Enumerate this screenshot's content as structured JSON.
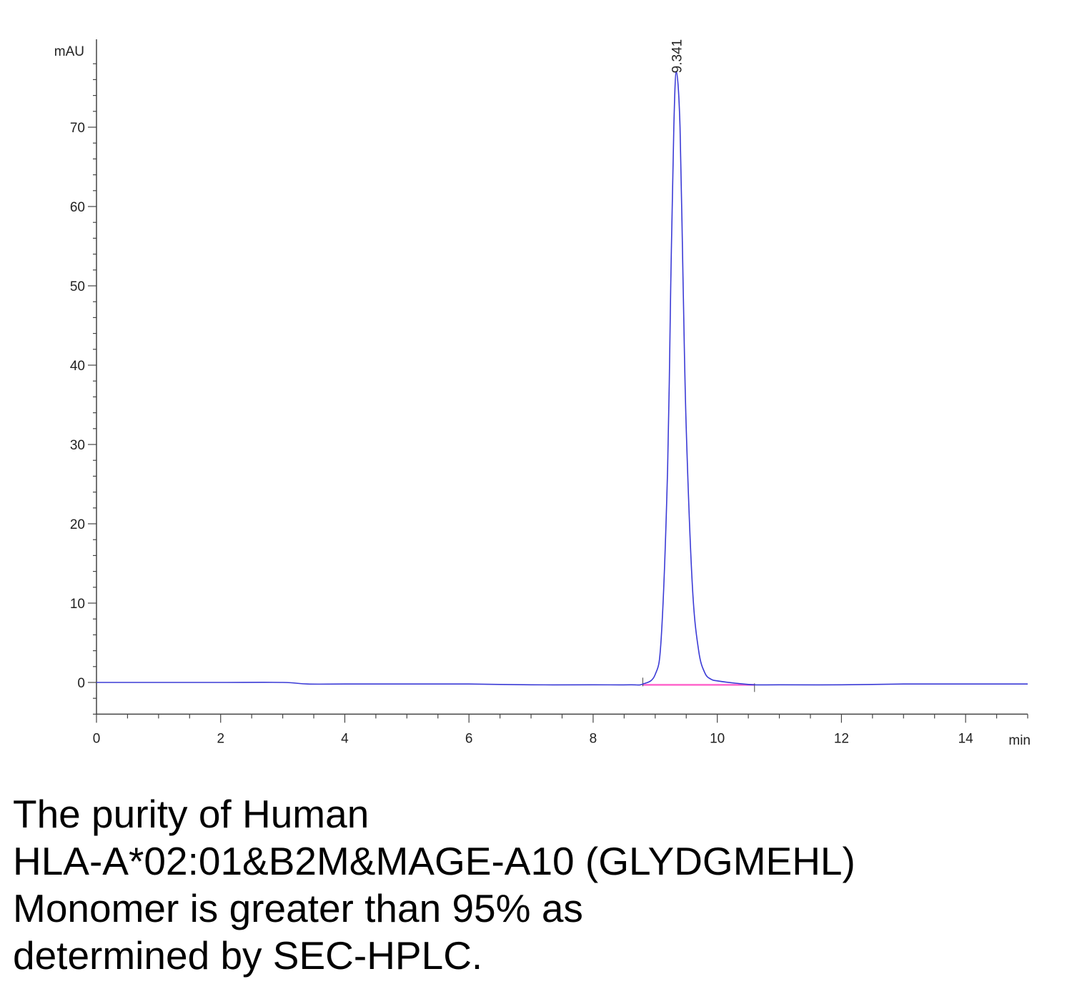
{
  "chart_data": {
    "type": "line",
    "ylabel": "mAU",
    "xlabel": "min",
    "xlim": [
      0,
      15
    ],
    "ylim": [
      -4,
      80
    ],
    "x_ticks": [
      "0",
      "2",
      "4",
      "6",
      "8",
      "10",
      "12",
      "14"
    ],
    "y_ticks": [
      "0",
      "10",
      "20",
      "30",
      "40",
      "50",
      "60",
      "70"
    ],
    "peak": {
      "label": "9.341",
      "retention_time": 9.341,
      "height": 77
    },
    "series": [
      {
        "color": "#3b3bd6",
        "x": [
          0,
          1,
          2,
          3,
          3.4,
          4,
          5,
          6,
          7,
          8,
          8.6,
          8.8,
          9.0,
          9.1,
          9.2,
          9.25,
          9.3,
          9.341,
          9.4,
          9.45,
          9.5,
          9.6,
          9.7,
          9.8,
          9.9,
          10.0,
          10.3,
          10.6,
          11,
          12,
          13,
          14,
          15
        ],
        "y": [
          0,
          0,
          0,
          0,
          -0.2,
          -0.2,
          -0.2,
          -0.2,
          -0.3,
          -0.3,
          -0.3,
          -0.2,
          1.0,
          6.0,
          27.0,
          50.0,
          70.0,
          77.0,
          70.0,
          50.0,
          32.0,
          12.0,
          4.0,
          1.2,
          0.4,
          0.2,
          -0.1,
          -0.3,
          -0.3,
          -0.3,
          -0.2,
          -0.2,
          -0.2
        ]
      }
    ],
    "baseline": {
      "color": "#ff66cc",
      "x": [
        8.8,
        10.6
      ],
      "y": [
        -0.3,
        -0.3
      ]
    },
    "color_axis": "#444444"
  },
  "caption": {
    "lines": [
      "The purity of Human",
      "HLA-A*02:01&B2M&MAGE-A10 (GLYDGMEHL)",
      "Monomer is greater than 95% as",
      "determined by SEC-HPLC."
    ]
  }
}
